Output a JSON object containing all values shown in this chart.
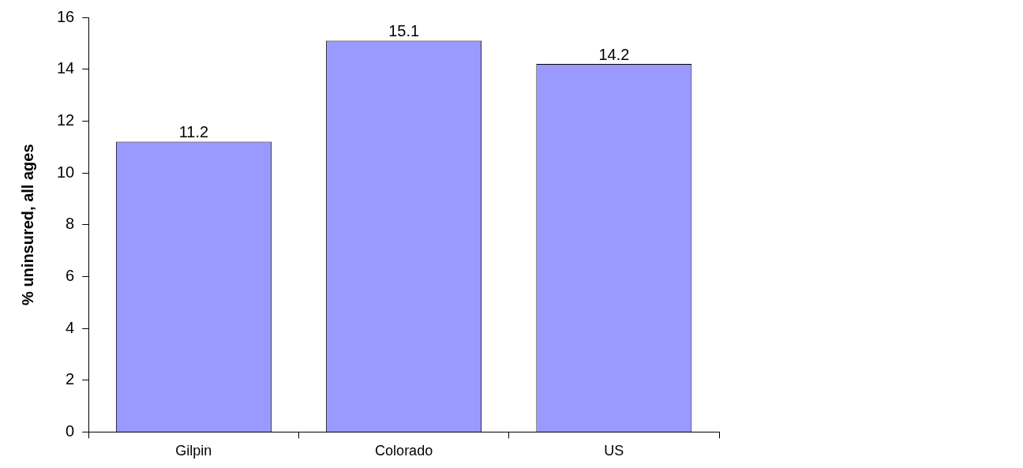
{
  "chart_data": {
    "type": "bar",
    "ylabel": "% uninsured, all ages",
    "categories": [
      "Gilpin",
      "Colorado",
      "US"
    ],
    "values": [
      11.2,
      15.1,
      14.2
    ],
    "color": "#9999ff",
    "ylim": [
      0,
      16
    ],
    "yticks": [
      0,
      2,
      4,
      6,
      8,
      10,
      12,
      14,
      16
    ],
    "data_labels": true
  }
}
